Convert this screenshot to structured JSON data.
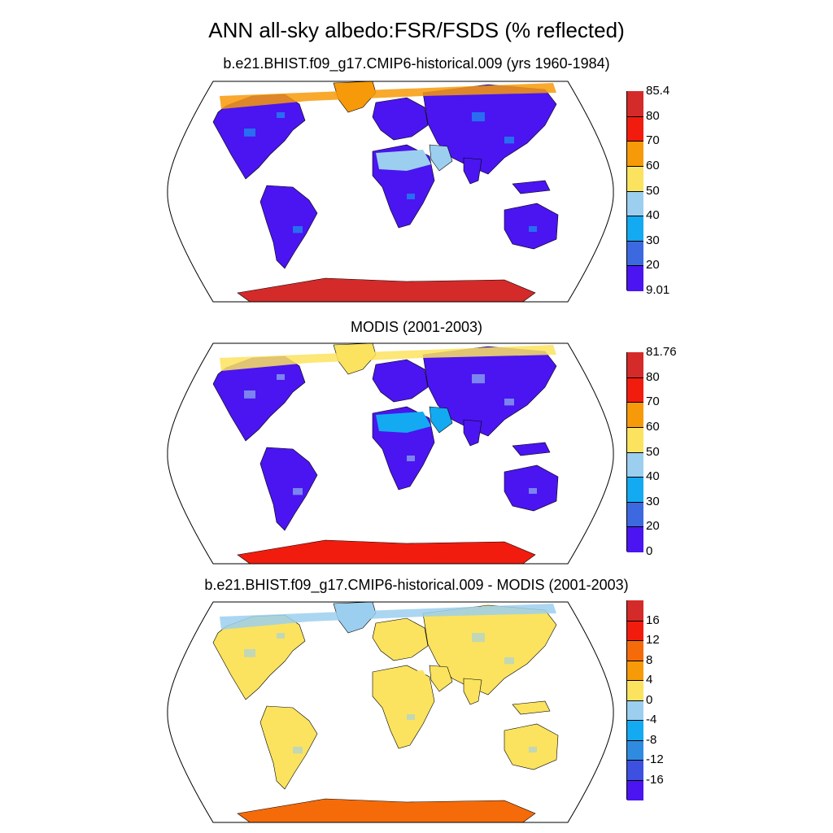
{
  "title": "ANN all-sky albedo:FSR/FSDS (% reflected)",
  "panels": [
    {
      "id": "model",
      "subtitle": "b.e21.BHIST.f09_g17.CMIP6-historical.009 (yrs 1960-1984)",
      "colorbar": {
        "labels": [
          "85.4",
          "80",
          "70",
          "60",
          "50",
          "40",
          "30",
          "20",
          "9.01"
        ],
        "colors": [
          "#d52a2a",
          "#f21c0e",
          "#f79a09",
          "#fbe35f",
          "#9ccfef",
          "#13aaf2",
          "#3d69e0",
          "#4a15f0"
        ]
      },
      "palette": {
        "land": "#4a15f0",
        "desert": "#9ccfef",
        "ice": "#d52a2a",
        "arctic": "#f79a09",
        "accent": "#13aaf2"
      }
    },
    {
      "id": "obs",
      "subtitle": "MODIS (2001-2003)",
      "colorbar": {
        "labels": [
          "81.76",
          "80",
          "70",
          "60",
          "50",
          "40",
          "30",
          "20",
          "0"
        ],
        "colors": [
          "#d52a2a",
          "#f21c0e",
          "#f79a09",
          "#fbe35f",
          "#9ccfef",
          "#13aaf2",
          "#3d69e0",
          "#4a15f0"
        ]
      },
      "palette": {
        "land": "#4a15f0",
        "desert": "#13aaf2",
        "ice": "#f21c0e",
        "arctic": "#fbe35f",
        "accent": "#9ccfef"
      }
    },
    {
      "id": "diff",
      "subtitle": "b.e21.BHIST.f09_g17.CMIP6-historical.009 - MODIS (2001-2003)",
      "colorbar": {
        "labels": [
          "16",
          "12",
          "8",
          "4",
          "0",
          "-4",
          "-8",
          "-12",
          "-16"
        ],
        "colors": [
          "#d52a2a",
          "#f21c0e",
          "#f56b0a",
          "#f79a09",
          "#fbe35f",
          "#9ccfef",
          "#13aaf2",
          "#2f8be0",
          "#3d50e0",
          "#4a15f0"
        ]
      },
      "palette": {
        "land": "#fbe35f",
        "desert": "#fbe35f",
        "ice": "#f56b0a",
        "arctic": "#9ccfef",
        "accent": "#9ccfef"
      }
    }
  ]
}
